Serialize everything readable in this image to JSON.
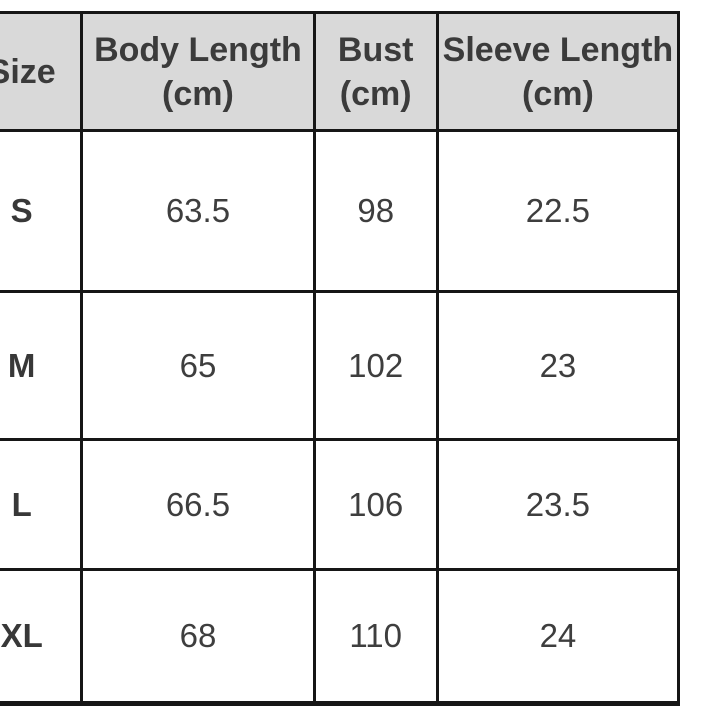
{
  "chart_data": {
    "type": "table",
    "title": "",
    "header": [
      {
        "title": "Size",
        "unit": ""
      },
      {
        "title": "Body Length",
        "unit": "(cm)"
      },
      {
        "title": "Bust",
        "unit": "(cm)"
      },
      {
        "title": "Sleeve Length",
        "unit": "(cm)"
      }
    ],
    "rows": [
      {
        "size": "S",
        "body_length": "63.5",
        "bust": "98",
        "sleeve_length": "22.5"
      },
      {
        "size": "M",
        "body_length": "65",
        "bust": "102",
        "sleeve_length": "23"
      },
      {
        "size": "L",
        "body_length": "66.5",
        "bust": "106",
        "sleeve_length": "23.5"
      },
      {
        "size": "XL",
        "body_length": "68",
        "bust": "110",
        "sleeve_length": "24"
      }
    ]
  },
  "colors": {
    "header_background": "#d9d9d9",
    "border": "#161616",
    "header_text": "#3b3b3b",
    "cell_text": "#3e3e3e",
    "page_background": "#ffffff"
  }
}
